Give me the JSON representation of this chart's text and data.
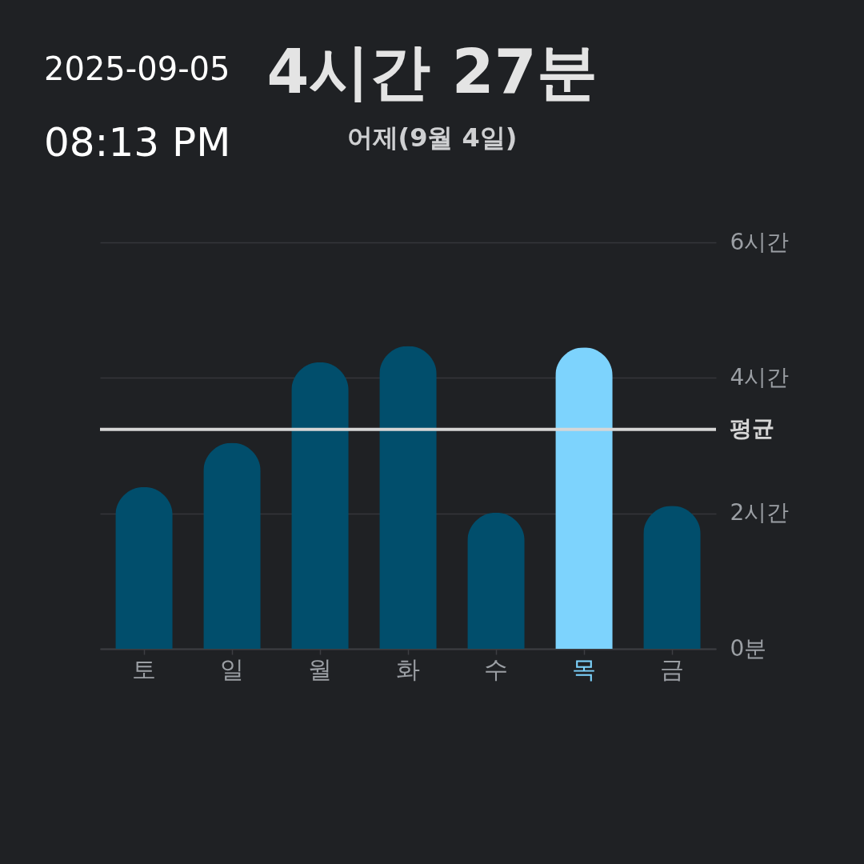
{
  "chart_data": {
    "type": "bar",
    "title": "4시간 27분",
    "subtitle": "어제(9월 4일)",
    "annotations": [
      "2025-09-05",
      "08:13 PM"
    ],
    "categories": [
      "토",
      "일",
      "월",
      "화",
      "수",
      "목",
      "금"
    ],
    "values": [
      2.39,
      3.04,
      4.23,
      4.47,
      2.01,
      4.45,
      2.11
    ],
    "colors": [
      "#014e6c",
      "#014e6c",
      "#014e6c",
      "#014e6c",
      "#014e6c",
      "#7dd3fd",
      "#014e6c"
    ],
    "ylim": [
      0,
      6
    ],
    "yticks": [
      {
        "value": 0,
        "label": "0분"
      },
      {
        "value": 2,
        "label": "2시간"
      },
      {
        "value": 4,
        "label": "4시간"
      },
      {
        "value": 6,
        "label": "6시간"
      }
    ],
    "grid": "y",
    "ref_lines": [
      {
        "axis": "y",
        "value": 3.24,
        "label": "평균",
        "color": "#d6d6d6"
      }
    ]
  }
}
